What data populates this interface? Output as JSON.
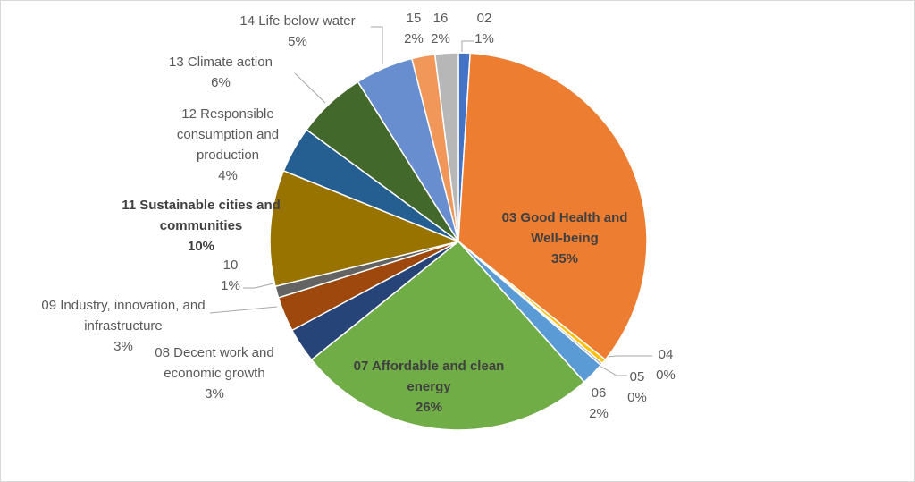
{
  "chart_data": {
    "type": "pie",
    "categories": [
      "02",
      "03 Good Health and Well-being",
      "04",
      "05",
      "06",
      "07 Affordable and clean energy",
      "08 Decent work and economic growth",
      "09 Industry, innovation, and infrastructure",
      "10",
      "11 Sustainable cities and communities",
      "12 Responsible consumption and production",
      "13 Climate action",
      "14 Life below water",
      "15",
      "16"
    ],
    "values": [
      1,
      35,
      0.4,
      0.2,
      2,
      26,
      3,
      3,
      1,
      10,
      4,
      6,
      5,
      2,
      2
    ],
    "value_labels": [
      "1%",
      "35%",
      "0%",
      "0%",
      "2%",
      "26%",
      "3%",
      "3%",
      "1%",
      "10%",
      "4%",
      "6%",
      "5%",
      "2%",
      "2%"
    ],
    "colors": [
      "#4472c4",
      "#ed7d31",
      "#ffc000",
      "#a5a5a5",
      "#5b9bd5",
      "#70ad47",
      "#264478",
      "#9e480e",
      "#636363",
      "#997300",
      "#255e91",
      "#43682b",
      "#698ed0",
      "#f1975a",
      "#b7b7b7"
    ]
  }
}
